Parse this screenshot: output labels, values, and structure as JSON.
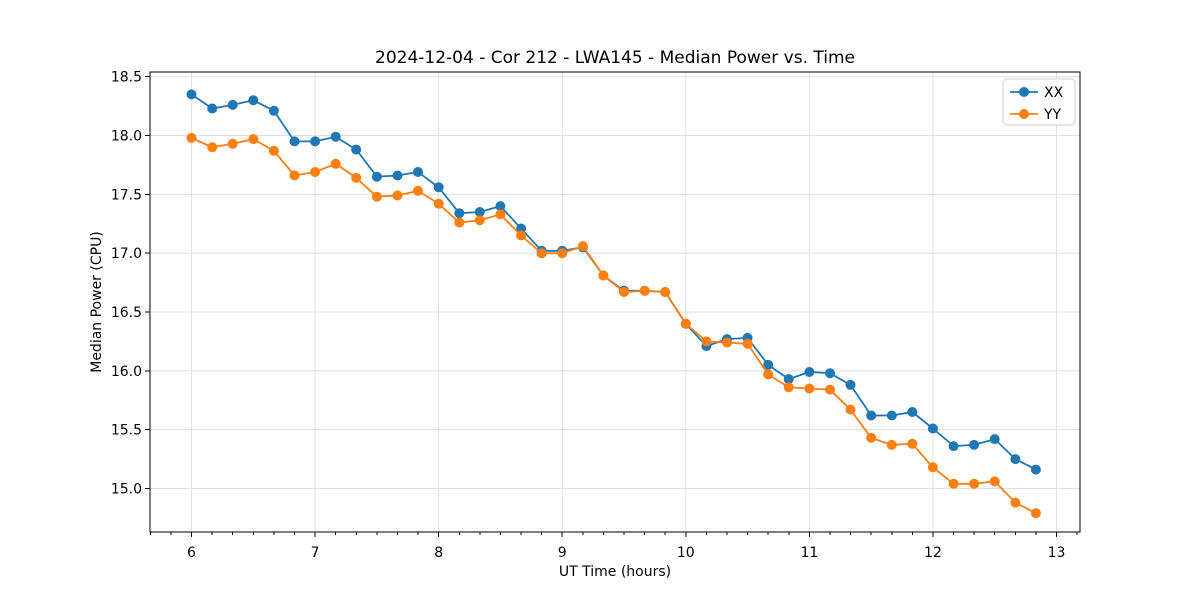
{
  "chart_data": {
    "type": "line",
    "title": "2024-12-04 - Cor 212 - LWA145 - Median Power vs. Time",
    "xlabel": "UT Time (hours)",
    "ylabel": "Median Power (CPU)",
    "xlim": [
      5.664,
      13.19
    ],
    "ylim": [
      14.63,
      18.54
    ],
    "grid": "major-both",
    "grid_color": "#e0e0e0",
    "legend_position": "upper right",
    "marker": "o",
    "x_ticks": [
      {
        "v": 6,
        "label": "6"
      },
      {
        "v": 7,
        "label": "7"
      },
      {
        "v": 8,
        "label": "8"
      },
      {
        "v": 9,
        "label": "9"
      },
      {
        "v": 10,
        "label": "10"
      },
      {
        "v": 11,
        "label": "11"
      },
      {
        "v": 12,
        "label": "12"
      },
      {
        "v": 13,
        "label": "13"
      }
    ],
    "x_minor_tick_step": 0.166667,
    "y_ticks": [
      {
        "v": 15.0,
        "label": "15.0"
      },
      {
        "v": 15.5,
        "label": "15.5"
      },
      {
        "v": 16.0,
        "label": "16.0"
      },
      {
        "v": 16.5,
        "label": "16.5"
      },
      {
        "v": 17.0,
        "label": "17.0"
      },
      {
        "v": 17.5,
        "label": "17.5"
      },
      {
        "v": 18.0,
        "label": "18.0"
      },
      {
        "v": 18.5,
        "label": "18.5"
      }
    ],
    "x": [
      6.0,
      6.167,
      6.333,
      6.5,
      6.667,
      6.833,
      7.0,
      7.167,
      7.333,
      7.5,
      7.667,
      7.833,
      8.0,
      8.167,
      8.333,
      8.5,
      8.667,
      8.833,
      9.0,
      9.167,
      9.333,
      9.5,
      9.667,
      9.833,
      10.0,
      10.167,
      10.333,
      10.5,
      10.667,
      10.833,
      11.0,
      11.167,
      11.333,
      11.5,
      11.667,
      11.833,
      12.0,
      12.167,
      12.333,
      12.5,
      12.667,
      12.833
    ],
    "series": [
      {
        "name": "XX",
        "color": "#1f77b4",
        "values": [
          18.35,
          18.23,
          18.26,
          18.3,
          18.21,
          17.95,
          17.95,
          17.99,
          17.88,
          17.65,
          17.66,
          17.69,
          17.56,
          17.34,
          17.35,
          17.4,
          17.21,
          17.02,
          17.02,
          17.05,
          16.81,
          16.68,
          16.68,
          16.67,
          16.4,
          16.21,
          16.27,
          16.28,
          16.05,
          15.93,
          15.99,
          15.98,
          15.88,
          15.62,
          15.62,
          15.65,
          15.51,
          15.36,
          15.37,
          15.42,
          15.25,
          15.16
        ]
      },
      {
        "name": "YY",
        "color": "#ff7f0e",
        "values": [
          17.98,
          17.9,
          17.93,
          17.97,
          17.87,
          17.66,
          17.69,
          17.76,
          17.64,
          17.48,
          17.49,
          17.53,
          17.42,
          17.26,
          17.28,
          17.33,
          17.15,
          17.0,
          17.0,
          17.06,
          16.81,
          16.67,
          16.68,
          16.67,
          16.4,
          16.25,
          16.24,
          16.23,
          15.97,
          15.86,
          15.85,
          15.84,
          15.67,
          15.43,
          15.37,
          15.38,
          15.18,
          15.04,
          15.04,
          15.06,
          14.88,
          14.79
        ]
      }
    ]
  }
}
